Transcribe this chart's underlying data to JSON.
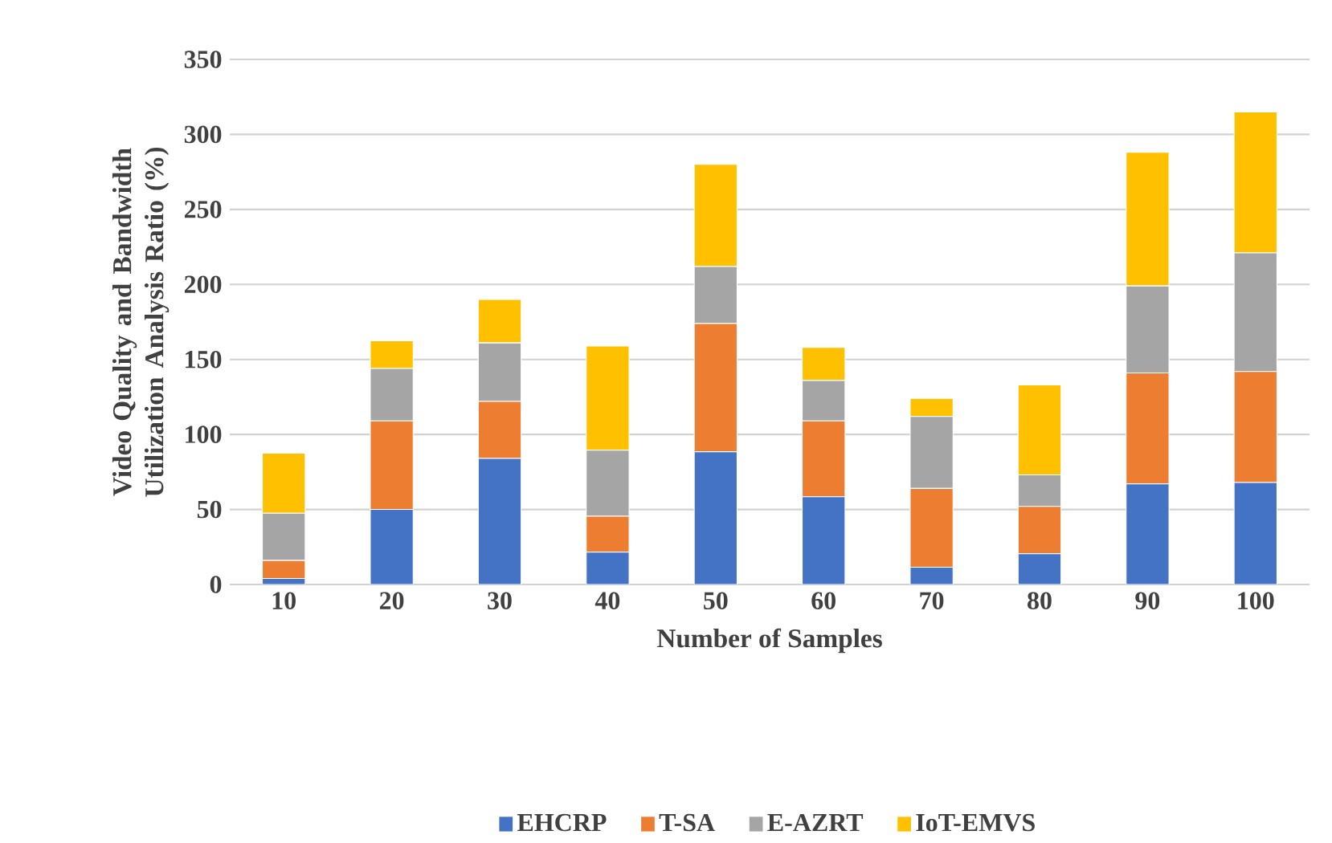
{
  "chart_data": {
    "type": "bar",
    "stacked": true,
    "xlabel": "Number of Samples",
    "ylabel": "Video Quality and Bandwidth Utilization Analysis Ratio (%)",
    "categories": [
      "10",
      "20",
      "30",
      "40",
      "50",
      "60",
      "70",
      "80",
      "90",
      "100"
    ],
    "series": [
      {
        "name": "EHCRP",
        "color": "#4472c4",
        "values": [
          4,
          50,
          84,
          21.5,
          88.5,
          58.5,
          11.5,
          20.5,
          67,
          68
        ]
      },
      {
        "name": "T-SA",
        "color": "#ed7d31",
        "values": [
          12,
          59,
          38,
          24,
          85.5,
          50.5,
          52.5,
          31.5,
          74,
          74
        ]
      },
      {
        "name": "E-AZRT",
        "color": "#a5a5a5",
        "values": [
          31.5,
          35,
          39,
          44,
          38,
          27,
          48,
          21,
          58,
          79
        ]
      },
      {
        "name": "IoT-EMVS",
        "color": "#ffc000",
        "values": [
          40,
          18.5,
          29,
          69.5,
          68,
          22,
          12,
          60,
          89,
          94
        ]
      }
    ],
    "ylim": [
      0,
      350
    ],
    "yticks": [
      0,
      50,
      100,
      150,
      200,
      250,
      300,
      350
    ],
    "grid": "y",
    "legend": "bottom"
  }
}
